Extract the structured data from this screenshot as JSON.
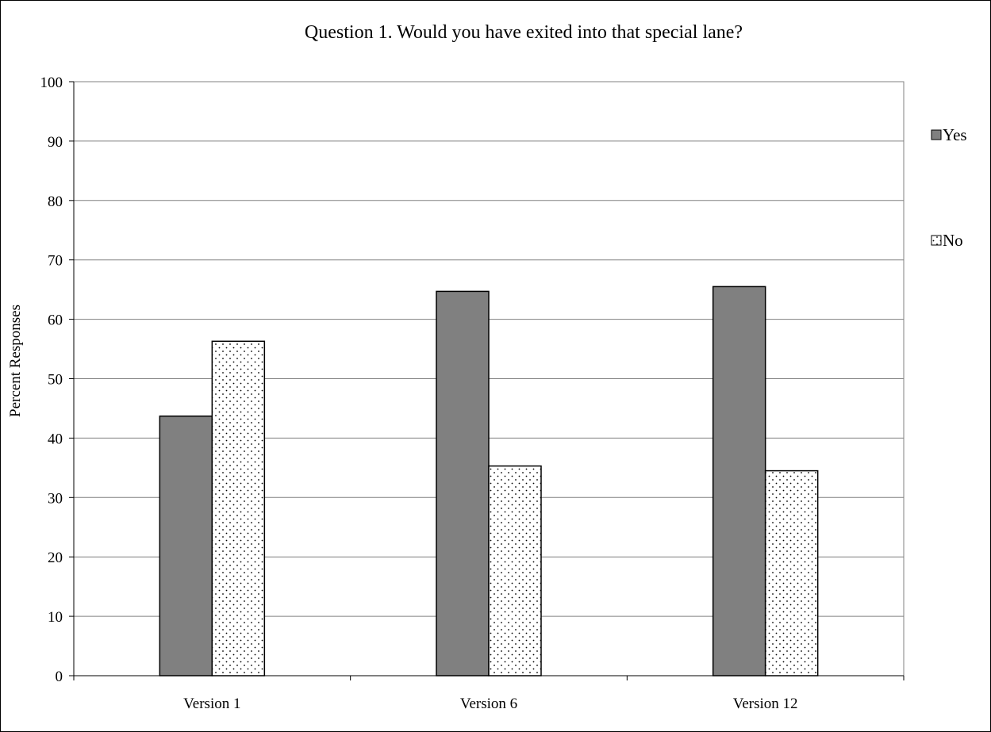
{
  "chart_data": {
    "type": "bar",
    "title": "Question 1.  Would you have exited into that special lane?",
    "xlabel": "",
    "ylabel": "Percent Responses",
    "categories": [
      "Version 1",
      "Version 6",
      "Version 12"
    ],
    "series": [
      {
        "name": "Yes",
        "values": [
          43.7,
          64.7,
          65.5
        ],
        "color": "#808080",
        "pattern": "solid"
      },
      {
        "name": "No",
        "values": [
          56.3,
          35.3,
          34.5
        ],
        "color": "#ffffff",
        "pattern": "dots"
      }
    ],
    "ylim": [
      0,
      100
    ],
    "yticks": [
      0,
      10,
      20,
      30,
      40,
      50,
      60,
      70,
      80,
      90,
      100
    ],
    "grid": true,
    "legend_position": "right"
  }
}
